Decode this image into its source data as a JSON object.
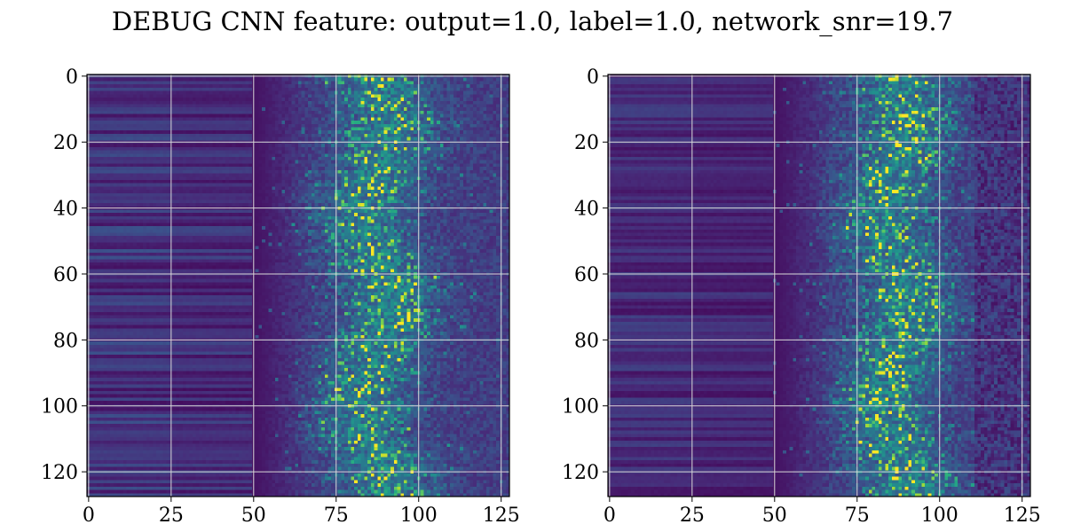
{
  "figure": {
    "title": "DEBUG CNN feature: output=1.0, label=1.0, network_snr=19.7"
  },
  "chart_data": [
    {
      "type": "heatmap",
      "title": "",
      "xlabel": "",
      "ylabel": "",
      "rows": 128,
      "cols": 128,
      "colormap": "viridis",
      "xlim": [
        -0.5,
        127.5
      ],
      "ylim": [
        127.5,
        -0.5
      ],
      "xticks": [
        0,
        25,
        50,
        75,
        100,
        125
      ],
      "yticks": [
        0,
        20,
        40,
        60,
        80,
        100,
        120
      ],
      "grid": true,
      "description_of_values": {
        "background": 0.05,
        "left_band_cols": [
          0,
          50
        ],
        "left_band_value_range": [
          0.05,
          0.25
        ],
        "active_cols": [
          50,
          127
        ],
        "active_peak_cols": [
          75,
          95
        ],
        "peak_value": 1.0
      }
    },
    {
      "type": "heatmap",
      "title": "",
      "xlabel": "",
      "ylabel": "",
      "rows": 128,
      "cols": 128,
      "colormap": "viridis",
      "xlim": [
        -0.5,
        127.5
      ],
      "ylim": [
        127.5,
        -0.5
      ],
      "xticks": [
        0,
        25,
        50,
        75,
        100,
        125
      ],
      "yticks": [
        0,
        20,
        40,
        60,
        80,
        100,
        120
      ],
      "grid": true,
      "description_of_values": {
        "background": 0.05,
        "left_band_cols": [
          0,
          50
        ],
        "left_band_value_range": [
          0.05,
          0.2
        ],
        "active_cols": [
          50,
          110
        ],
        "active_peak_cols": [
          75,
          95
        ],
        "peak_value": 1.0
      }
    }
  ]
}
